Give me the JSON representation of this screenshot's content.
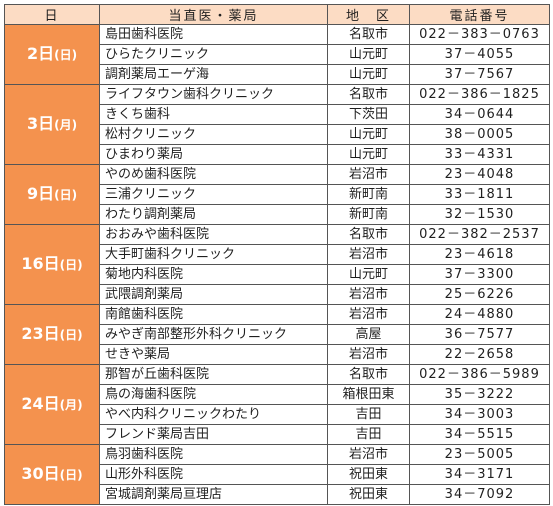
{
  "header": {
    "day": "日",
    "facility": "当直医・薬局",
    "area": "地　区",
    "phone": "電話番号"
  },
  "groups": [
    {
      "day": "2日",
      "dow": "(日)",
      "rows": [
        {
          "name": "島田歯科医院",
          "area": "名取市",
          "phone": "022－383－0763"
        },
        {
          "name": "ひらたクリニック",
          "area": "山元町",
          "phone": "37－4055"
        },
        {
          "name": "調剤薬局エーゲ海",
          "area": "山元町",
          "phone": "37－7567"
        }
      ]
    },
    {
      "day": "3日",
      "dow": "(月)",
      "rows": [
        {
          "name": "ライフタウン歯科クリニック",
          "area": "名取市",
          "phone": "022－386－1825"
        },
        {
          "name": "きくち歯科",
          "area": "下茨田",
          "phone": "34－0644"
        },
        {
          "name": "松村クリニック",
          "area": "山元町",
          "phone": "38－0005"
        },
        {
          "name": "ひまわり薬局",
          "area": "山元町",
          "phone": "33－4331"
        }
      ]
    },
    {
      "day": "9日",
      "dow": "(日)",
      "rows": [
        {
          "name": "やのめ歯科医院",
          "area": "岩沼市",
          "phone": "23－4048"
        },
        {
          "name": "三浦クリニック",
          "area": "新町南",
          "phone": "33－1811"
        },
        {
          "name": "わたり調剤薬局",
          "area": "新町南",
          "phone": "32－1530"
        }
      ]
    },
    {
      "day": "16日",
      "dow": "(日)",
      "rows": [
        {
          "name": "おおみや歯科医院",
          "area": "名取市",
          "phone": "022－382－2537"
        },
        {
          "name": "大手町歯科クリニック",
          "area": "岩沼市",
          "phone": "23－4618"
        },
        {
          "name": "菊地内科医院",
          "area": "山元町",
          "phone": "37－3300"
        },
        {
          "name": "武隈調剤薬局",
          "area": "岩沼市",
          "phone": "25－6226"
        }
      ]
    },
    {
      "day": "23日",
      "dow": "(日)",
      "rows": [
        {
          "name": "南館歯科医院",
          "area": "岩沼市",
          "phone": "24－4880"
        },
        {
          "name": "みやぎ南部整形外科クリニック",
          "area": "高屋",
          "phone": "36－7577"
        },
        {
          "name": "せきや薬局",
          "area": "岩沼市",
          "phone": "22－2658"
        }
      ]
    },
    {
      "day": "24日",
      "dow": "(月)",
      "rows": [
        {
          "name": "那智が丘歯科医院",
          "area": "名取市",
          "phone": "022－386－5989"
        },
        {
          "name": "鳥の海歯科医院",
          "area": "箱根田東",
          "phone": "35－3222"
        },
        {
          "name": "やべ内科クリニックわたり",
          "area": "吉田",
          "phone": "34－3003"
        },
        {
          "name": "フレンド薬局吉田",
          "area": "吉田",
          "phone": "34－5515"
        }
      ]
    },
    {
      "day": "30日",
      "dow": "(日)",
      "rows": [
        {
          "name": "鳥羽歯科医院",
          "area": "岩沼市",
          "phone": "23－5005"
        },
        {
          "name": "山形外科医院",
          "area": "祝田東",
          "phone": "34－3171"
        },
        {
          "name": "宮城調剤薬局亘理店",
          "area": "祝田東",
          "phone": "34－7092"
        }
      ]
    }
  ]
}
